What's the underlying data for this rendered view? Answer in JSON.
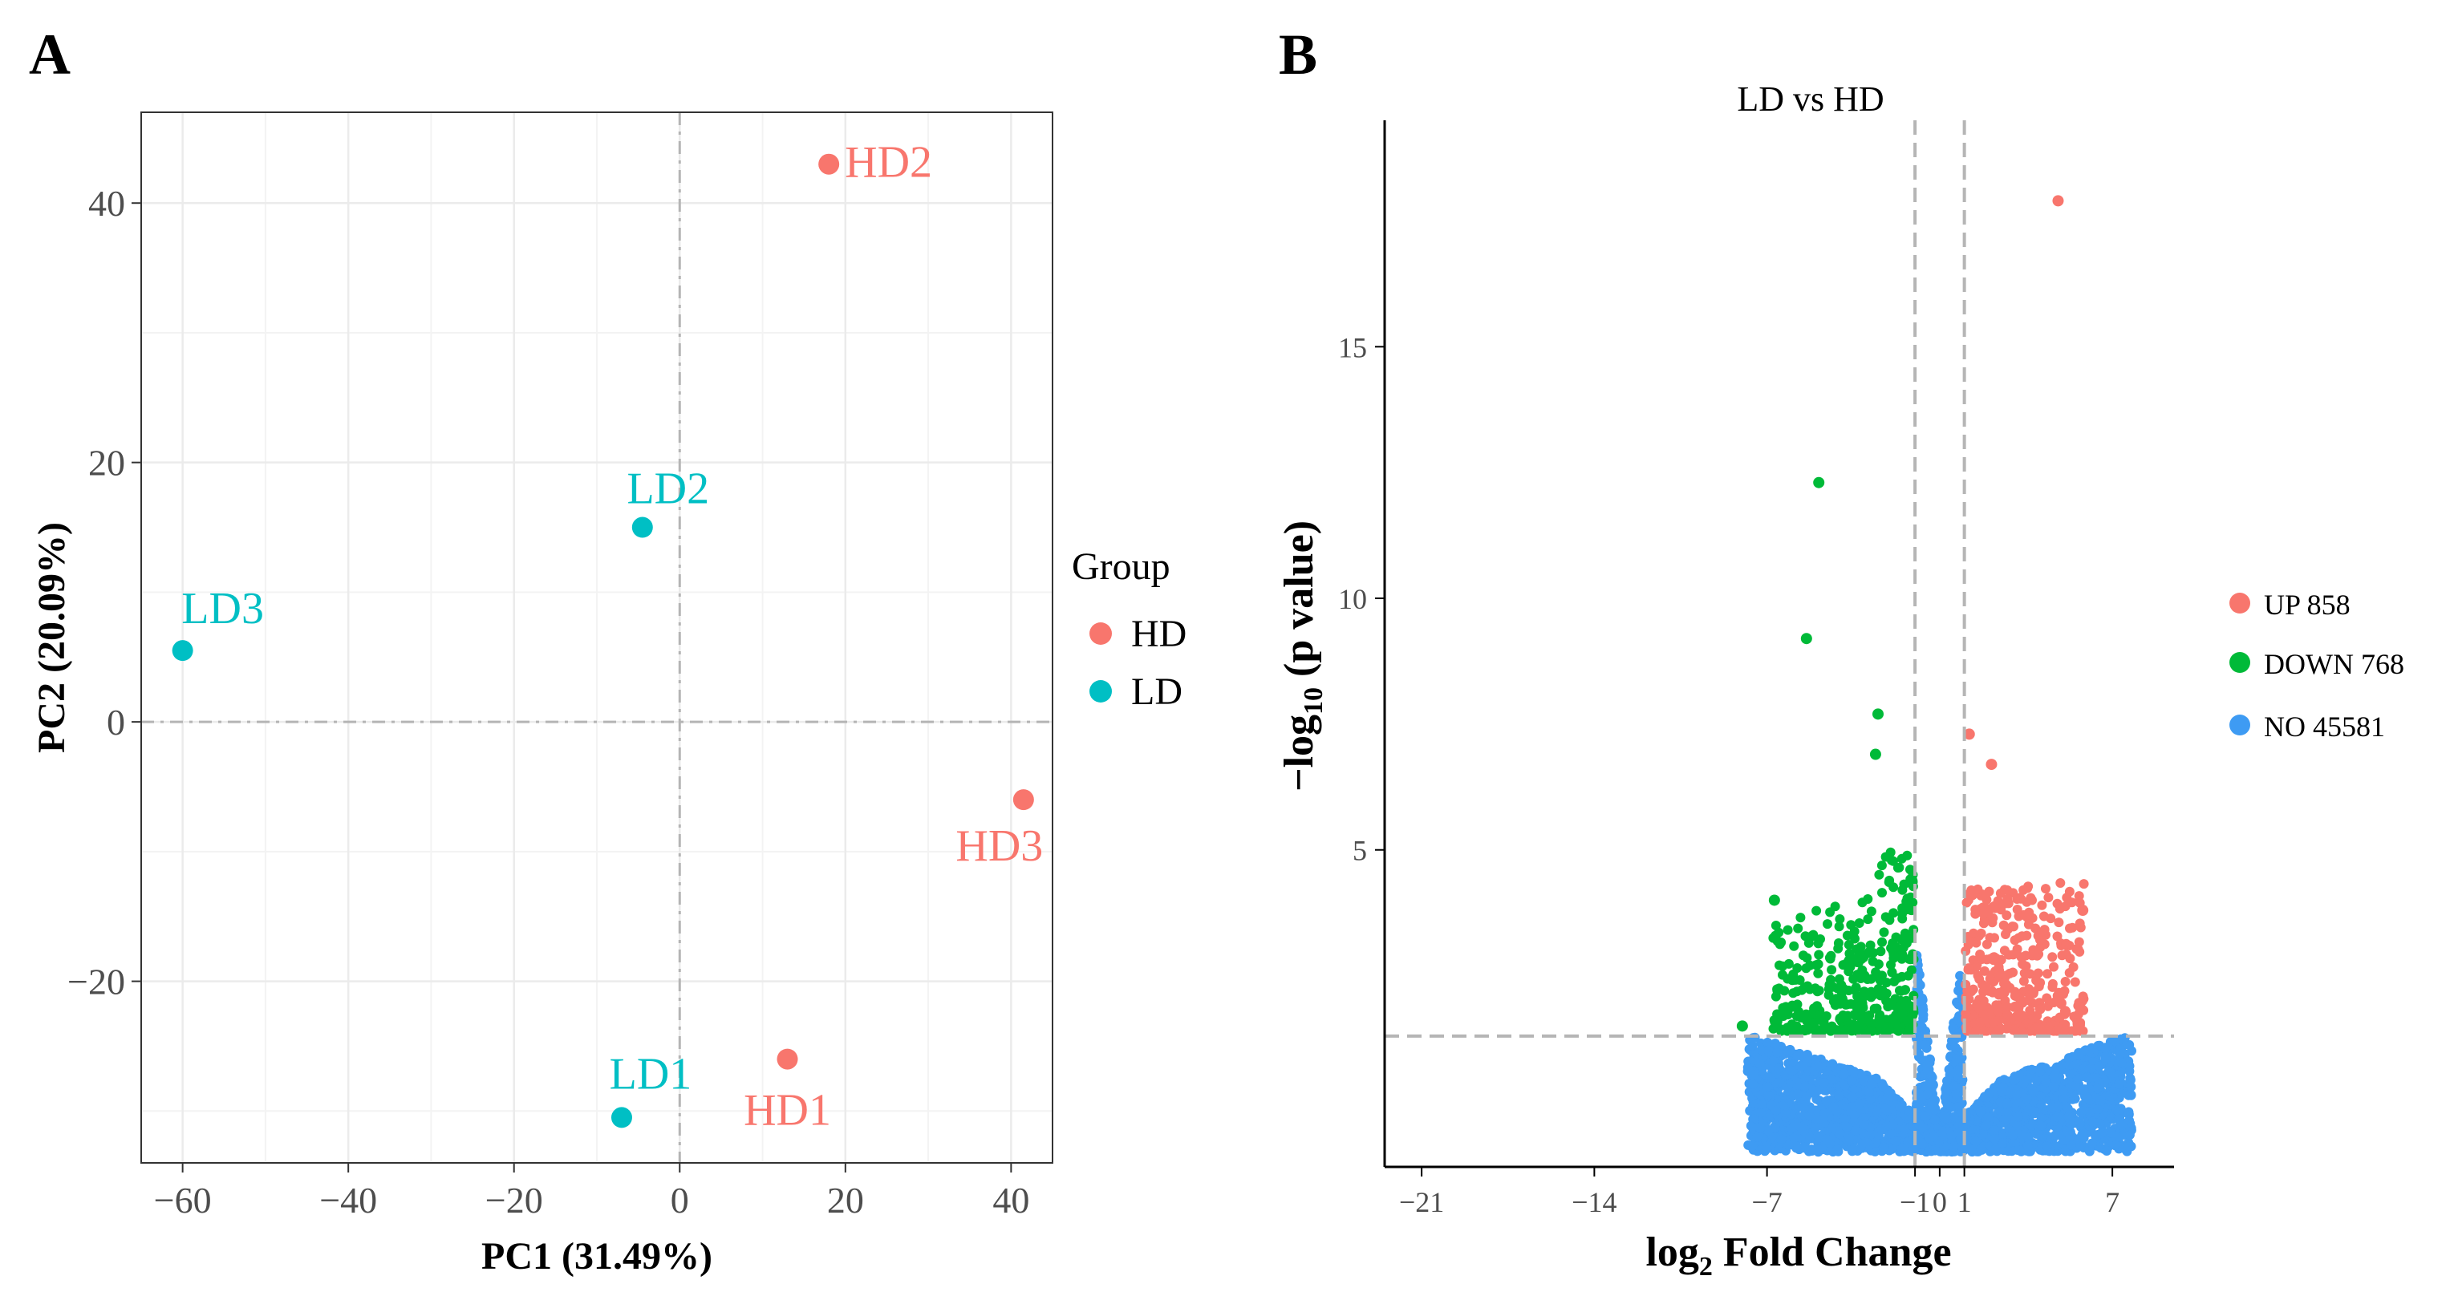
{
  "colors": {
    "hd": "#F8766D",
    "ld": "#00BFC4",
    "up": "#F8766D",
    "down": "#00BA38",
    "no": "#3E9BF3",
    "grid": "#ebebeb",
    "refline": "#b5b5b5",
    "axis_text": "#4d4d4d"
  },
  "panels": {
    "a_label": "A",
    "b_label": "B"
  },
  "chart_data": [
    {
      "type": "scatter",
      "title": "",
      "xlabel": "PC1 (31.49%)",
      "ylabel": "PC2 (20.09%)",
      "xlim": [
        -65,
        45
      ],
      "ylim": [
        -34,
        47
      ],
      "xticks": [
        -60,
        -40,
        -20,
        0,
        20,
        40
      ],
      "xtick_labels": [
        "−60",
        "−40",
        "−20",
        "0",
        "20",
        "40"
      ],
      "yticks": [
        -20,
        0,
        20,
        40
      ],
      "ytick_labels": [
        "−20",
        "0",
        "20",
        "40"
      ],
      "grid": true,
      "legend": {
        "title": "Group",
        "position": "right",
        "entries": [
          {
            "label": "HD",
            "color": "#F8766D"
          },
          {
            "label": "LD",
            "color": "#00BFC4"
          }
        ]
      },
      "points": [
        {
          "label": "HD1",
          "group": "HD",
          "x": 13,
          "y": -26
        },
        {
          "label": "HD2",
          "group": "HD",
          "x": 18,
          "y": 43
        },
        {
          "label": "HD3",
          "group": "HD",
          "x": 41.5,
          "y": -6
        },
        {
          "label": "LD1",
          "group": "LD",
          "x": -7,
          "y": -30.5
        },
        {
          "label": "LD2",
          "group": "LD",
          "x": -4.5,
          "y": 15
        },
        {
          "label": "LD3",
          "group": "LD",
          "x": -60,
          "y": 5.5
        }
      ]
    },
    {
      "type": "scatter",
      "title": "LD vs HD",
      "xlabel_main": "log",
      "xlabel_sub": "2",
      "xlabel_rest": " Fold Change",
      "ylabel_pre": "−log",
      "ylabel_sub": "10",
      "ylabel_rest": " (p value)",
      "xlim": [
        -22.5,
        9.5
      ],
      "ylim": [
        -1.3,
        19.5
      ],
      "xticks": [
        -21,
        -14,
        -7,
        -1,
        0,
        1,
        7
      ],
      "xtick_labels": [
        "−21",
        "−14",
        "−7",
        "−1",
        "0",
        "1",
        "7"
      ],
      "yticks": [
        5,
        10,
        15
      ],
      "ytick_labels": [
        "5",
        "10",
        "15"
      ],
      "thresholds": {
        "log2fc": [
          -1,
          1
        ],
        "neg_log10_p": 1.3
      },
      "legend": {
        "position": "right",
        "entries": [
          {
            "label": "UP 858",
            "category": "UP",
            "count": 858,
            "color": "#F8766D"
          },
          {
            "label": "DOWN 768",
            "category": "DOWN",
            "count": 768,
            "color": "#00BA38"
          },
          {
            "label": "NO 45581",
            "category": "NO",
            "count": 45581,
            "color": "#3E9BF3"
          }
        ]
      },
      "highlight_points": [
        {
          "category": "UP",
          "x": 4.8,
          "y": 17.9
        },
        {
          "category": "UP",
          "x": 1.2,
          "y": 7.3
        },
        {
          "category": "UP",
          "x": 2.1,
          "y": 6.7
        },
        {
          "category": "UP",
          "x": 5.8,
          "y": 3.8
        },
        {
          "category": "DOWN",
          "x": -4.9,
          "y": 12.3
        },
        {
          "category": "DOWN",
          "x": -5.4,
          "y": 9.2
        },
        {
          "category": "DOWN",
          "x": -2.5,
          "y": 7.7
        },
        {
          "category": "DOWN",
          "x": -2.6,
          "y": 6.9
        },
        {
          "category": "DOWN",
          "x": -8.0,
          "y": 1.5
        },
        {
          "category": "DOWN",
          "x": -6.7,
          "y": 4.0
        }
      ]
    }
  ]
}
